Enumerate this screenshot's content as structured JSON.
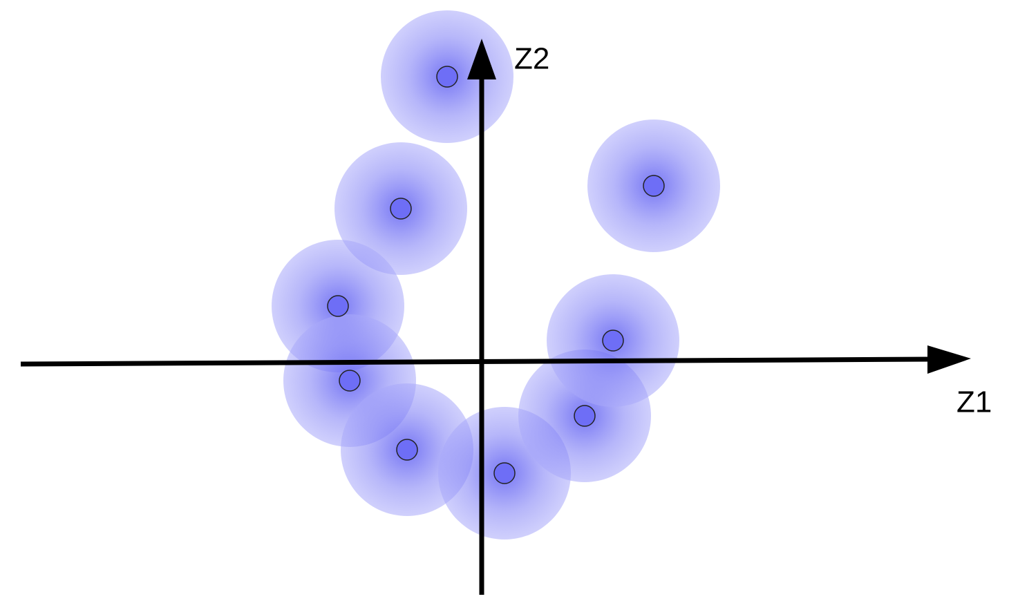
{
  "axes": {
    "x_label": "Z1",
    "y_label": "Z2"
  }
}
